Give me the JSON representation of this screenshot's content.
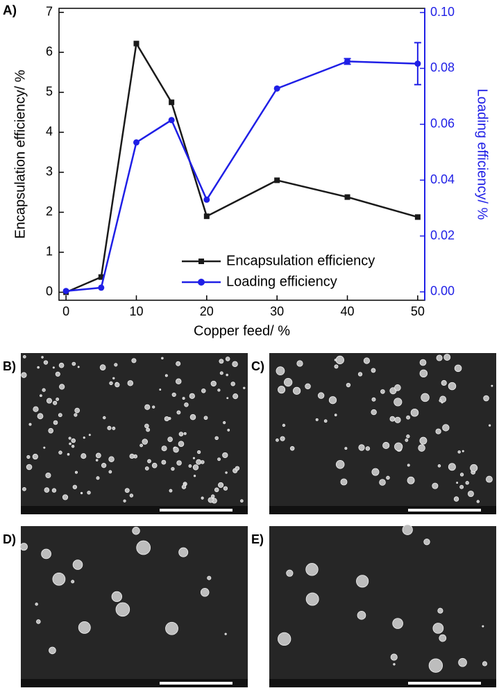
{
  "chart_data": {
    "type": "line",
    "panel_label": "A)",
    "x_label": "Copper feed/ %",
    "y_label": "Encapsulation efficiency/ %",
    "y2_label": "Loading efficiency/ %",
    "x": [
      0,
      5,
      10,
      15,
      20,
      30,
      40,
      50
    ],
    "xlim": [
      -1,
      51
    ],
    "xticks": [
      0,
      10,
      20,
      30,
      40,
      50
    ],
    "ylim": [
      -0.2,
      7.1
    ],
    "yticks": [
      0,
      1,
      2,
      3,
      4,
      5,
      6,
      7
    ],
    "y2lim": [
      -0.003,
      0.1015
    ],
    "y2ticks": [
      {
        "value": 0,
        "label": "0.00"
      },
      {
        "value": 0.02,
        "label": "0.02"
      },
      {
        "value": 0.04,
        "label": "0.04"
      },
      {
        "value": 0.06,
        "label": "0.06"
      },
      {
        "value": 0.08,
        "label": "0.08"
      },
      {
        "value": 0.1,
        "label": "0.10"
      }
    ],
    "legend": "lower right",
    "series": [
      {
        "name": "Encapsulation efficiency",
        "color": "#1a1a1a",
        "marker": "square",
        "values": [
          0,
          0.38,
          6.22,
          4.75,
          1.9,
          2.8,
          2.38,
          1.88
        ]
      },
      {
        "name": "Loading efficiency",
        "color": "#1f1fe6",
        "marker": "circle",
        "axis": "y2",
        "values": [
          0.0003,
          0.0015,
          0.0535,
          0.0615,
          0.033,
          0.0728,
          0.0825,
          0.0817
        ],
        "errors": [
          null,
          null,
          null,
          null,
          null,
          null,
          0.001,
          0.0075
        ]
      }
    ]
  },
  "images": [
    {
      "label": "B)"
    },
    {
      "label": "C)"
    },
    {
      "label": "D)"
    },
    {
      "label": "E)"
    }
  ]
}
